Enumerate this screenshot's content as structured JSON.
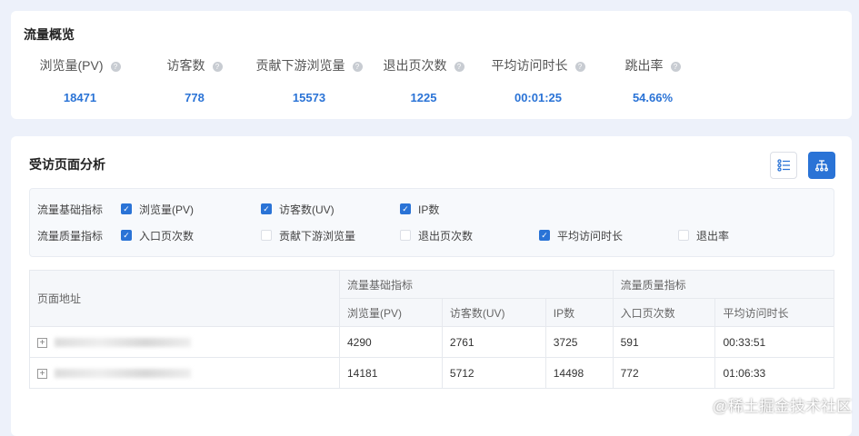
{
  "overview": {
    "title": "流量概览",
    "metrics": [
      {
        "label": "浏览量(PV)",
        "value": "18471"
      },
      {
        "label": "访客数",
        "value": "778"
      },
      {
        "label": "贡献下游浏览量",
        "value": "15573"
      },
      {
        "label": "退出页次数",
        "value": "1225"
      },
      {
        "label": "平均访问时长",
        "value": "00:01:25"
      },
      {
        "label": "跳出率",
        "value": "54.66%"
      }
    ],
    "help_icon": "?"
  },
  "analysis": {
    "title": "受访页面分析",
    "accent": "#2a73d6",
    "filters": [
      {
        "label": "流量基础指标",
        "options": [
          {
            "label": "浏览量(PV)",
            "checked": true
          },
          {
            "label": "访客数(UV)",
            "checked": true
          },
          {
            "label": "IP数",
            "checked": true
          }
        ]
      },
      {
        "label": "流量质量指标",
        "options": [
          {
            "label": "入口页次数",
            "checked": true
          },
          {
            "label": "贡献下游浏览量",
            "checked": false
          },
          {
            "label": "退出页次数",
            "checked": false
          },
          {
            "label": "平均访问时长",
            "checked": true
          },
          {
            "label": "退出率",
            "checked": false
          }
        ]
      }
    ],
    "table": {
      "col_page": "页面地址",
      "group_basic": "流量基础指标",
      "group_quality": "流量质量指标",
      "columns": [
        "浏览量(PV)",
        "访客数(UV)",
        "IP数",
        "入口页次数",
        "平均访问时长"
      ],
      "rows": [
        [
          "4290",
          "2761",
          "3725",
          "591",
          "00:33:51"
        ],
        [
          "14181",
          "5712",
          "14498",
          "772",
          "01:06:33"
        ]
      ]
    }
  },
  "watermark": "@稀土掘金技术社区"
}
